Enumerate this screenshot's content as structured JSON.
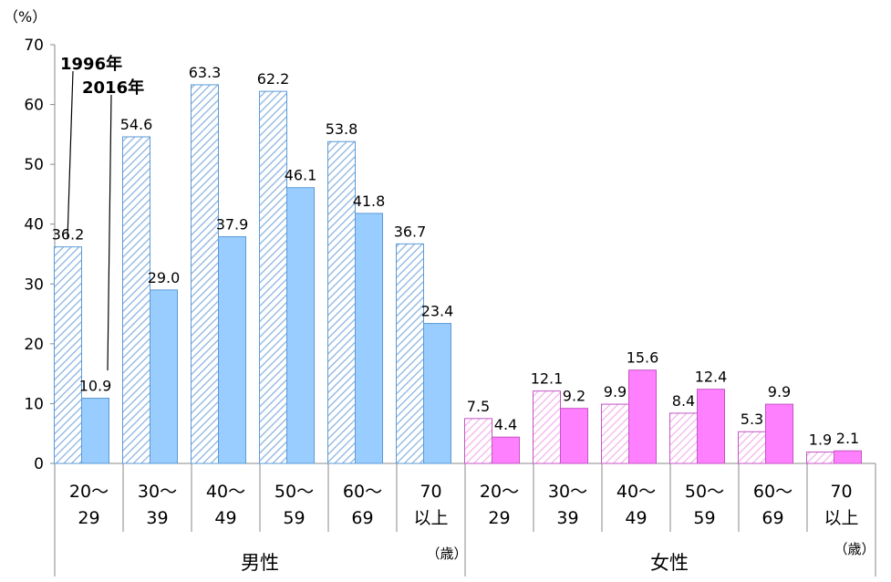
{
  "chart_data": {
    "type": "bar",
    "y_unit": "（%）",
    "ylim": [
      0,
      70
    ],
    "yticks": [
      "0",
      "10",
      "20",
      "30",
      "40",
      "50",
      "60",
      "70"
    ],
    "grid": false,
    "categories": [
      "20〜29",
      "30〜39",
      "40〜49",
      "50〜59",
      "60〜69",
      "70以上",
      "20〜29",
      "30〜39",
      "40〜49",
      "50〜59",
      "60〜69",
      "70以上"
    ],
    "category_lines": [
      [
        "20〜",
        "29"
      ],
      [
        "30〜",
        "39"
      ],
      [
        "40〜",
        "49"
      ],
      [
        "50〜",
        "59"
      ],
      [
        "60〜",
        "69"
      ],
      [
        "70",
        "以上"
      ],
      [
        "20〜",
        "29"
      ],
      [
        "30〜",
        "39"
      ],
      [
        "40〜",
        "49"
      ],
      [
        "50〜",
        "59"
      ],
      [
        "60〜",
        "69"
      ],
      [
        "70",
        "以上"
      ]
    ],
    "groups": [
      {
        "label": "男性",
        "unit": "（歳）",
        "count": 6
      },
      {
        "label": "女性",
        "unit": "（歳）",
        "count": 6
      }
    ],
    "series": [
      {
        "name": "1996年",
        "values": [
          36.2,
          54.6,
          63.3,
          62.2,
          53.8,
          36.7,
          7.5,
          12.1,
          9.9,
          8.4,
          5.3,
          1.9
        ]
      },
      {
        "name": "2016年",
        "values": [
          10.9,
          29.0,
          37.9,
          46.1,
          41.8,
          23.4,
          4.4,
          9.2,
          15.6,
          12.4,
          9.9,
          2.1
        ]
      }
    ],
    "colors": {
      "male_hatch": "#8DB4E2",
      "male_solid": "#99CCFF",
      "female_hatch": "#F4B6EE",
      "female_solid": "#FF80FF",
      "bar_border_male": "#5B9BD5",
      "bar_border_female": "#C455C4"
    }
  }
}
